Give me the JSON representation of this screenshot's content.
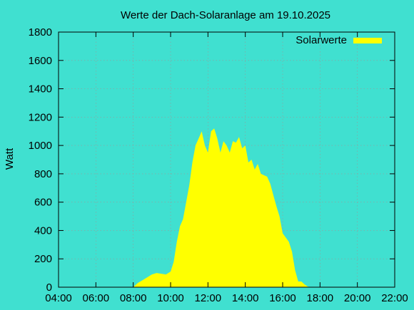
{
  "chart_data": {
    "type": "area",
    "title": "Werte der Dach-Solaranlage am 19.10.2025",
    "xlabel": "",
    "ylabel": "Watt",
    "xlim": [
      "04:00",
      "22:00"
    ],
    "ylim": [
      0,
      1800
    ],
    "xticks": [
      "04:00",
      "06:00",
      "08:00",
      "10:00",
      "12:00",
      "14:00",
      "16:00",
      "18:00",
      "20:00",
      "22:00"
    ],
    "yticks": [
      "0",
      "200",
      "400",
      "600",
      "800",
      "1000",
      "1200",
      "1400",
      "1600",
      "1800"
    ],
    "grid": true,
    "legend_position": "top-right",
    "series": [
      {
        "name": "Solarwerte",
        "color": "#ffff00",
        "x": [
          "08:00",
          "08:15",
          "08:30",
          "08:45",
          "09:00",
          "09:15",
          "09:30",
          "09:45",
          "10:00",
          "10:10",
          "10:20",
          "10:30",
          "10:40",
          "10:50",
          "11:00",
          "11:10",
          "11:20",
          "11:30",
          "11:40",
          "11:50",
          "12:00",
          "12:10",
          "12:20",
          "12:30",
          "12:40",
          "12:50",
          "13:00",
          "13:10",
          "13:20",
          "13:30",
          "13:40",
          "13:50",
          "14:00",
          "14:10",
          "14:20",
          "14:30",
          "14:40",
          "14:50",
          "15:00",
          "15:10",
          "15:20",
          "15:30",
          "15:40",
          "15:50",
          "16:00",
          "16:10",
          "16:20",
          "16:30",
          "16:40",
          "16:50",
          "17:00",
          "17:10",
          "17:20",
          "17:30",
          "17:40"
        ],
        "values": [
          0,
          30,
          50,
          70,
          90,
          100,
          95,
          90,
          110,
          180,
          320,
          430,
          480,
          600,
          720,
          880,
          1000,
          1050,
          1100,
          1000,
          950,
          1100,
          1120,
          1050,
          950,
          1030,
          1000,
          950,
          1030,
          1020,
          1060,
          980,
          1000,
          880,
          900,
          830,
          870,
          800,
          790,
          780,
          730,
          650,
          570,
          500,
          380,
          350,
          320,
          250,
          120,
          40,
          40,
          20,
          5,
          0,
          0
        ]
      }
    ]
  }
}
